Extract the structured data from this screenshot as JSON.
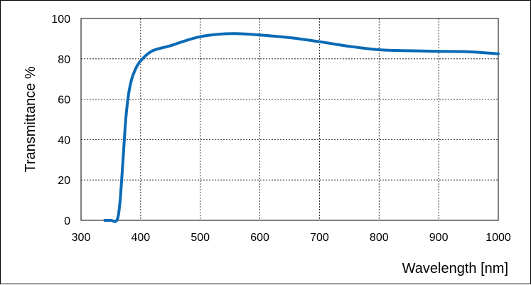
{
  "chart_data": {
    "type": "line",
    "title": "",
    "xlabel": "Wavelength [nm]",
    "ylabel": "Transmittance %",
    "xlim": [
      300,
      1000
    ],
    "ylim": [
      0,
      100
    ],
    "xticks": [
      300,
      400,
      500,
      600,
      700,
      800,
      900,
      1000
    ],
    "yticks": [
      0,
      20,
      40,
      60,
      80,
      100
    ],
    "grid": true,
    "line_color": "#0a6ab5",
    "series": [
      {
        "x": [
          340,
          350,
          360,
          365,
          370,
          375,
          380,
          385,
          390,
          395,
          400,
          410,
          420,
          430,
          450,
          470,
          500,
          530,
          560,
          600,
          650,
          700,
          750,
          800,
          850,
          900,
          950,
          1000
        ],
        "y": [
          0,
          0,
          0,
          8,
          28,
          50,
          63,
          70,
          74,
          77,
          79,
          82,
          84,
          85,
          86.5,
          88.5,
          91,
          92.2,
          92.5,
          91.8,
          90.5,
          88.5,
          86.2,
          84.5,
          84,
          83.7,
          83.5,
          82.5
        ]
      }
    ]
  }
}
